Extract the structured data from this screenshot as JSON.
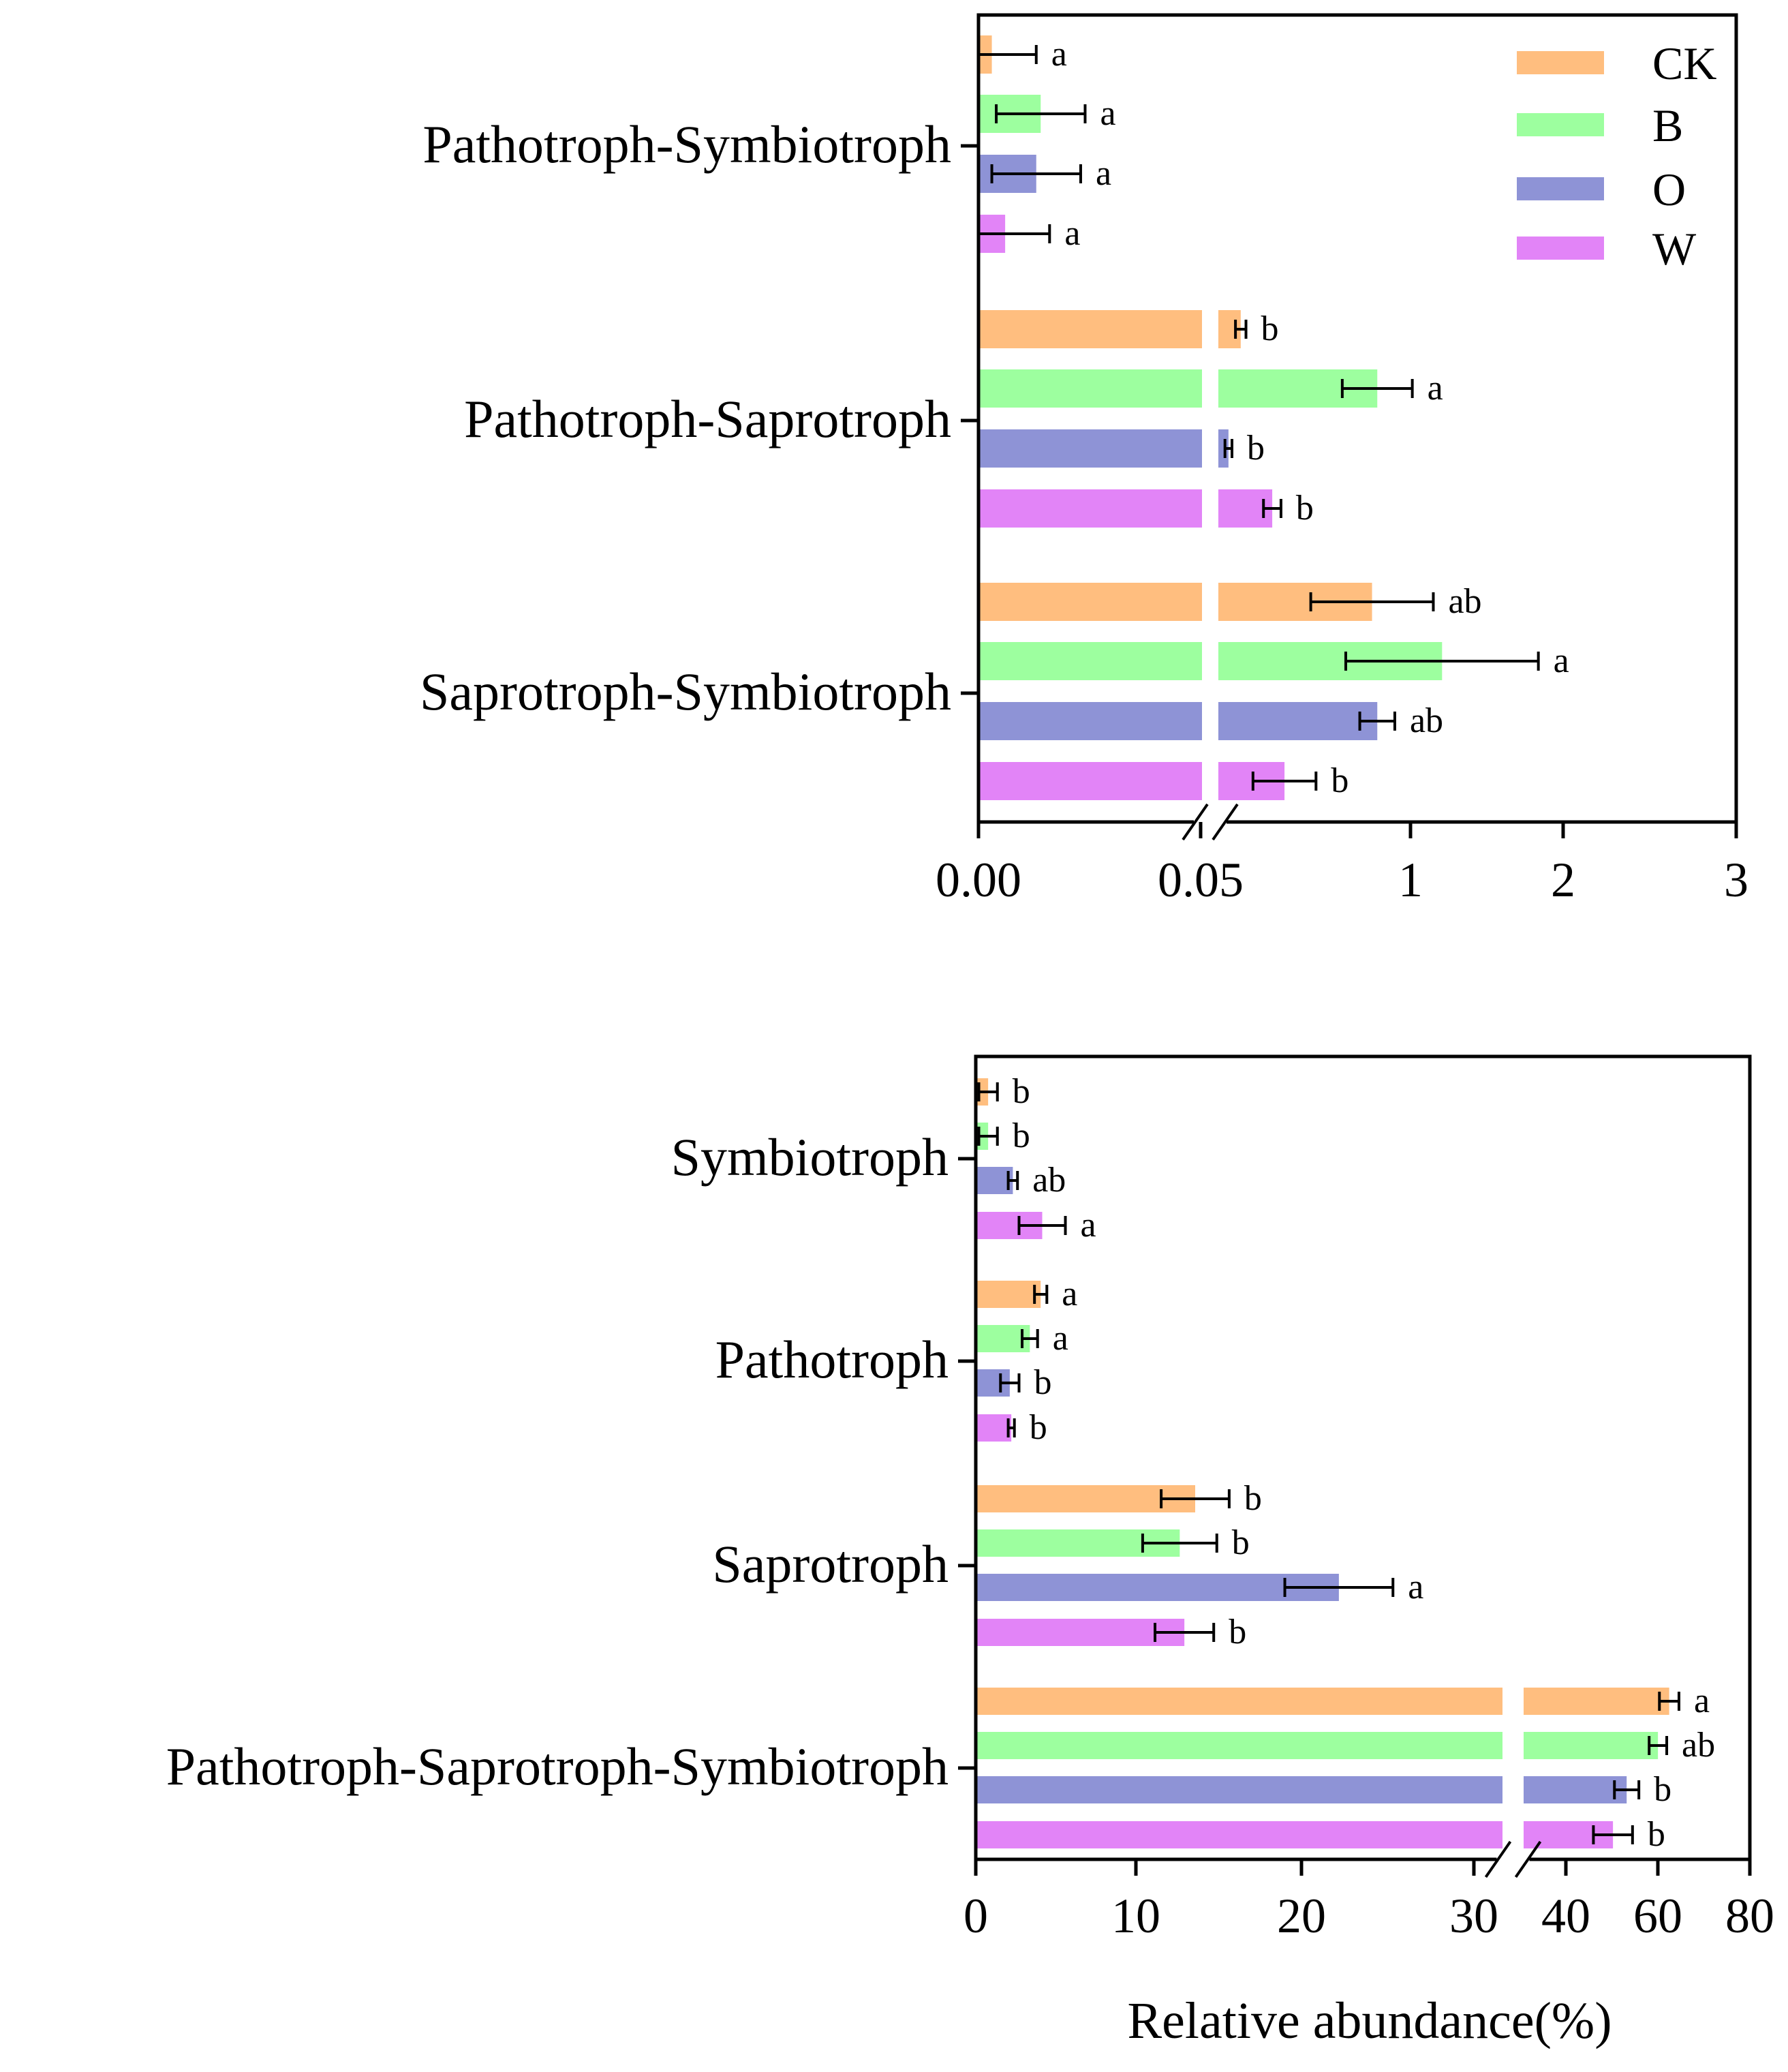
{
  "chart_data": [
    {
      "type": "bar",
      "orientation": "horizontal",
      "title": "",
      "xlabel": "",
      "ylabel": "",
      "broken_axis": true,
      "segments": [
        {
          "range": [
            0,
            0.05
          ],
          "ticks": [
            "0.00",
            "0.05"
          ]
        },
        {
          "range": [
            0.05,
            3
          ],
          "ticks": [
            "1",
            "2",
            "3"
          ]
        }
      ],
      "categories": [
        "Pathotroph-Symbiotroph",
        "Pathotroph-Saprotroph",
        "Saprotroph-Symbiotroph"
      ],
      "series": [
        {
          "name": "CK",
          "color": "#FFBE7F",
          "values": [
            0.003,
            0.17,
            0.92
          ],
          "errors": [
            0.01,
            0.03,
            0.35
          ],
          "letters": [
            "a",
            "b",
            "ab"
          ]
        },
        {
          "name": "B",
          "color": "#9DFF9F",
          "values": [
            0.014,
            0.95,
            1.32
          ],
          "errors": [
            0.01,
            0.2,
            0.55
          ],
          "letters": [
            "a",
            "a",
            "a"
          ]
        },
        {
          "name": "O",
          "color": "#8E93D6",
          "values": [
            0.013,
            0.1,
            0.95
          ],
          "errors": [
            0.01,
            0.02,
            0.1
          ],
          "letters": [
            "a",
            "b",
            "ab"
          ]
        },
        {
          "name": "W",
          "color": "#E284F7",
          "values": [
            0.006,
            0.35,
            0.42
          ],
          "errors": [
            0.01,
            0.05,
            0.18
          ],
          "letters": [
            "a",
            "b",
            "b"
          ]
        }
      ],
      "legend": {
        "position": "top-right",
        "entries": [
          "CK",
          "B",
          "O",
          "W"
        ]
      }
    },
    {
      "type": "bar",
      "orientation": "horizontal",
      "title": "",
      "xlabel": "Relative abundance(%)",
      "ylabel": "",
      "broken_axis": true,
      "segments": [
        {
          "range": [
            0,
            34
          ],
          "ticks": [
            "0",
            "10",
            "20",
            "30"
          ]
        },
        {
          "range": [
            34,
            80
          ],
          "ticks": [
            "40",
            "60",
            "80"
          ]
        }
      ],
      "categories": [
        "Symbiotroph",
        "Pathotroph",
        "Saprotroph",
        "Pathotroph-Saprotroph-Symbiotroph"
      ],
      "series": [
        {
          "name": "CK",
          "color": "#FFBE7F",
          "values": [
            0.8,
            4.2,
            14.2,
            63.5
          ],
          "errors": [
            0.6,
            0.4,
            2.2,
            2.0
          ],
          "letters": [
            "b",
            "a",
            "b",
            "a"
          ]
        },
        {
          "name": "B",
          "color": "#9DFF9F",
          "values": [
            0.8,
            3.5,
            13.2,
            61.2
          ],
          "errors": [
            0.6,
            0.5,
            2.4,
            1.8
          ],
          "letters": [
            "b",
            "a",
            "b",
            "ab"
          ]
        },
        {
          "name": "O",
          "color": "#8E93D6",
          "values": [
            2.4,
            2.2,
            23.5,
            54.8
          ],
          "errors": [
            0.3,
            0.6,
            3.5,
            2.5
          ],
          "letters": [
            "ab",
            "b",
            "a",
            "b"
          ]
        },
        {
          "name": "W",
          "color": "#E284F7",
          "values": [
            4.3,
            2.3,
            13.5,
            52.0
          ],
          "errors": [
            1.5,
            0.2,
            1.9,
            4.0
          ],
          "letters": [
            "a",
            "b",
            "b",
            "b"
          ]
        }
      ]
    }
  ]
}
